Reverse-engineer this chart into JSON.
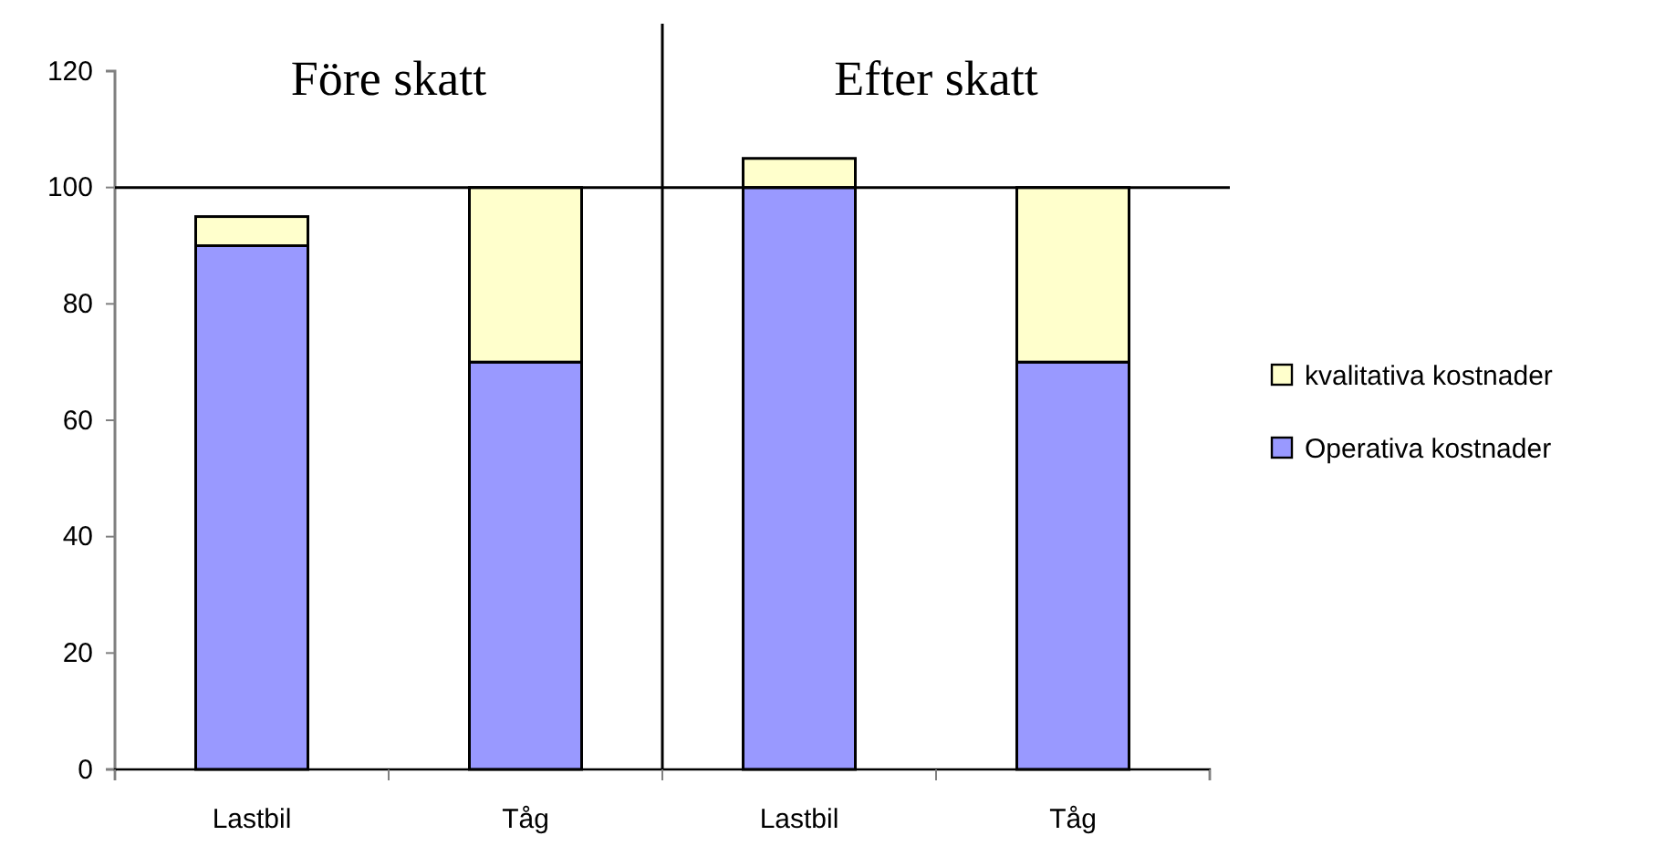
{
  "chart_data": {
    "type": "bar",
    "stacked": true,
    "categories": [
      "Lastbil",
      "Tåg",
      "Lastbil",
      "Tåg"
    ],
    "series": [
      {
        "name": "Operativa kostnader",
        "color": "#9999ff",
        "values": [
          90,
          70,
          100,
          70
        ]
      },
      {
        "name": "kvalitativa kostnader",
        "color": "#ffffcc",
        "values": [
          5,
          30,
          5,
          30
        ]
      }
    ],
    "ylim": [
      0,
      120
    ],
    "yticks": [
      0,
      20,
      40,
      60,
      80,
      100,
      120
    ],
    "ref_lines": [
      {
        "axis": "y",
        "value": 100,
        "color": "#000000"
      }
    ],
    "annotations": [
      "Före skatt",
      "Efter skatt"
    ],
    "legend": "right",
    "grid": false
  }
}
